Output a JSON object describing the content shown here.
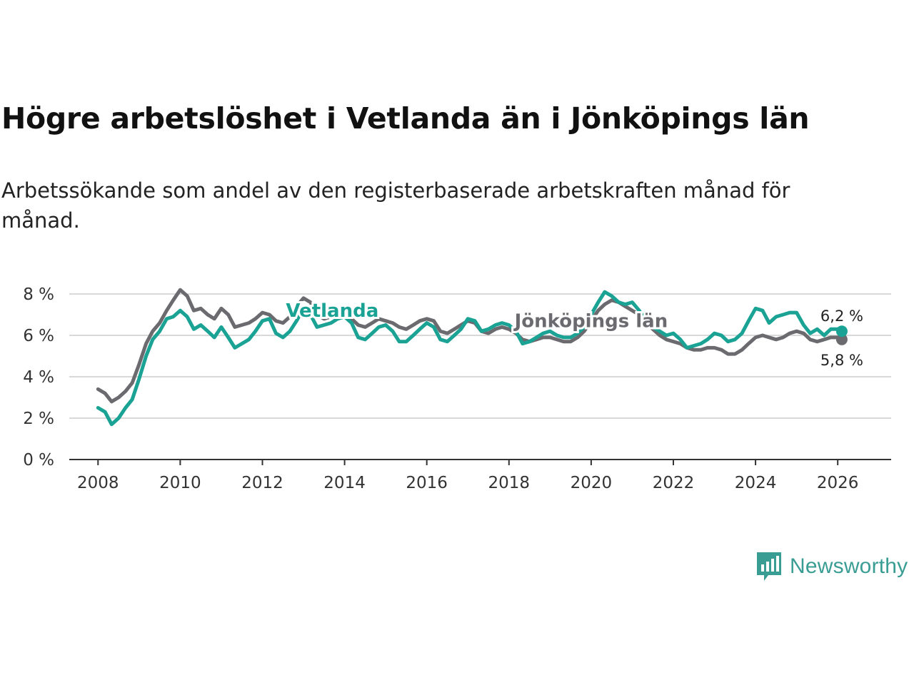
{
  "title": "Högre arbetslöshet i Vetlanda än i Jönköpings län",
  "subtitle": "Arbetssökande som andel av den registerbaserade arbetskraften månad för månad.",
  "brand": {
    "name": "Newsworthy",
    "color": "#3a9d94",
    "icon": "newsworthy-bar-chart-icon"
  },
  "chart_data": {
    "type": "line",
    "title": "Högre arbetslöshet i Vetlanda än i Jönköpings län",
    "xlabel": "",
    "ylabel": "",
    "xlim": [
      2007.3,
      2027.3
    ],
    "ylim": [
      0,
      8
    ],
    "x_ticks": [
      2008,
      2010,
      2012,
      2014,
      2016,
      2018,
      2020,
      2022,
      2024,
      2026
    ],
    "y_ticks": [
      0,
      2,
      4,
      6,
      8
    ],
    "y_tick_labels": [
      "0 %",
      "2 %",
      "4 %",
      "6 %",
      "8 %"
    ],
    "grid": true,
    "series": [
      {
        "name": "Jönköpings län",
        "color": "#6b6a6f",
        "label": "Jönköpings län",
        "end_label": "5,8 %",
        "points": [
          [
            2008.0,
            3.4
          ],
          [
            2008.17,
            3.2
          ],
          [
            2008.33,
            2.8
          ],
          [
            2008.5,
            3.0
          ],
          [
            2008.67,
            3.3
          ],
          [
            2008.83,
            3.7
          ],
          [
            2009.0,
            4.6
          ],
          [
            2009.17,
            5.6
          ],
          [
            2009.33,
            6.2
          ],
          [
            2009.5,
            6.6
          ],
          [
            2009.67,
            7.2
          ],
          [
            2009.83,
            7.7
          ],
          [
            2010.0,
            8.2
          ],
          [
            2010.17,
            7.9
          ],
          [
            2010.33,
            7.2
          ],
          [
            2010.5,
            7.3
          ],
          [
            2010.67,
            7.0
          ],
          [
            2010.83,
            6.8
          ],
          [
            2011.0,
            7.3
          ],
          [
            2011.17,
            7.0
          ],
          [
            2011.33,
            6.4
          ],
          [
            2011.5,
            6.5
          ],
          [
            2011.67,
            6.6
          ],
          [
            2011.83,
            6.8
          ],
          [
            2012.0,
            7.1
          ],
          [
            2012.17,
            7.0
          ],
          [
            2012.33,
            6.7
          ],
          [
            2012.5,
            6.6
          ],
          [
            2012.67,
            6.9
          ],
          [
            2012.83,
            7.4
          ],
          [
            2013.0,
            7.8
          ],
          [
            2013.17,
            7.6
          ],
          [
            2013.33,
            7.0
          ],
          [
            2013.5,
            6.8
          ],
          [
            2013.67,
            6.9
          ],
          [
            2013.83,
            7.0
          ],
          [
            2014.0,
            7.0
          ],
          [
            2014.17,
            6.8
          ],
          [
            2014.33,
            6.5
          ],
          [
            2014.5,
            6.4
          ],
          [
            2014.67,
            6.6
          ],
          [
            2014.83,
            6.8
          ],
          [
            2015.0,
            6.7
          ],
          [
            2015.17,
            6.6
          ],
          [
            2015.33,
            6.4
          ],
          [
            2015.5,
            6.3
          ],
          [
            2015.67,
            6.5
          ],
          [
            2015.83,
            6.7
          ],
          [
            2016.0,
            6.8
          ],
          [
            2016.17,
            6.7
          ],
          [
            2016.33,
            6.2
          ],
          [
            2016.5,
            6.1
          ],
          [
            2016.67,
            6.3
          ],
          [
            2016.83,
            6.5
          ],
          [
            2017.0,
            6.7
          ],
          [
            2017.17,
            6.6
          ],
          [
            2017.33,
            6.2
          ],
          [
            2017.5,
            6.1
          ],
          [
            2017.67,
            6.3
          ],
          [
            2017.83,
            6.4
          ],
          [
            2018.0,
            6.3
          ],
          [
            2018.17,
            6.1
          ],
          [
            2018.33,
            5.8
          ],
          [
            2018.5,
            5.7
          ],
          [
            2018.67,
            5.8
          ],
          [
            2018.83,
            5.9
          ],
          [
            2019.0,
            5.9
          ],
          [
            2019.17,
            5.8
          ],
          [
            2019.33,
            5.7
          ],
          [
            2019.5,
            5.7
          ],
          [
            2019.67,
            5.9
          ],
          [
            2019.83,
            6.2
          ],
          [
            2020.0,
            6.7
          ],
          [
            2020.17,
            7.2
          ],
          [
            2020.33,
            7.5
          ],
          [
            2020.5,
            7.7
          ],
          [
            2020.67,
            7.6
          ],
          [
            2020.83,
            7.4
          ],
          [
            2021.0,
            7.2
          ],
          [
            2021.17,
            7.0
          ],
          [
            2021.33,
            6.6
          ],
          [
            2021.5,
            6.3
          ],
          [
            2021.67,
            6.0
          ],
          [
            2021.83,
            5.8
          ],
          [
            2022.0,
            5.7
          ],
          [
            2022.17,
            5.6
          ],
          [
            2022.33,
            5.4
          ],
          [
            2022.5,
            5.3
          ],
          [
            2022.67,
            5.3
          ],
          [
            2022.83,
            5.4
          ],
          [
            2023.0,
            5.4
          ],
          [
            2023.17,
            5.3
          ],
          [
            2023.33,
            5.1
          ],
          [
            2023.5,
            5.1
          ],
          [
            2023.67,
            5.3
          ],
          [
            2023.83,
            5.6
          ],
          [
            2024.0,
            5.9
          ],
          [
            2024.17,
            6.0
          ],
          [
            2024.33,
            5.9
          ],
          [
            2024.5,
            5.8
          ],
          [
            2024.67,
            5.9
          ],
          [
            2024.83,
            6.1
          ],
          [
            2025.0,
            6.2
          ],
          [
            2025.17,
            6.1
          ],
          [
            2025.33,
            5.8
          ],
          [
            2025.5,
            5.7
          ],
          [
            2025.67,
            5.8
          ],
          [
            2025.83,
            5.9
          ],
          [
            2026.0,
            5.9
          ],
          [
            2026.1,
            5.8
          ]
        ]
      },
      {
        "name": "Vetlanda",
        "color": "#1aa394",
        "label": "Vetlanda",
        "end_label": "6,2 %",
        "points": [
          [
            2008.0,
            2.5
          ],
          [
            2008.17,
            2.3
          ],
          [
            2008.33,
            1.7
          ],
          [
            2008.5,
            2.0
          ],
          [
            2008.67,
            2.5
          ],
          [
            2008.83,
            2.9
          ],
          [
            2009.0,
            3.9
          ],
          [
            2009.17,
            5.0
          ],
          [
            2009.33,
            5.8
          ],
          [
            2009.5,
            6.2
          ],
          [
            2009.67,
            6.8
          ],
          [
            2009.83,
            6.9
          ],
          [
            2010.0,
            7.2
          ],
          [
            2010.17,
            6.9
          ],
          [
            2010.33,
            6.3
          ],
          [
            2010.5,
            6.5
          ],
          [
            2010.67,
            6.2
          ],
          [
            2010.83,
            5.9
          ],
          [
            2011.0,
            6.4
          ],
          [
            2011.17,
            5.9
          ],
          [
            2011.33,
            5.4
          ],
          [
            2011.5,
            5.6
          ],
          [
            2011.67,
            5.8
          ],
          [
            2011.83,
            6.2
          ],
          [
            2012.0,
            6.7
          ],
          [
            2012.17,
            6.8
          ],
          [
            2012.33,
            6.1
          ],
          [
            2012.5,
            5.9
          ],
          [
            2012.67,
            6.2
          ],
          [
            2012.83,
            6.7
          ],
          [
            2013.0,
            7.3
          ],
          [
            2013.17,
            7.0
          ],
          [
            2013.33,
            6.4
          ],
          [
            2013.5,
            6.5
          ],
          [
            2013.67,
            6.6
          ],
          [
            2013.83,
            6.8
          ],
          [
            2014.0,
            6.9
          ],
          [
            2014.17,
            6.6
          ],
          [
            2014.33,
            5.9
          ],
          [
            2014.5,
            5.8
          ],
          [
            2014.67,
            6.1
          ],
          [
            2014.83,
            6.4
          ],
          [
            2015.0,
            6.5
          ],
          [
            2015.17,
            6.2
          ],
          [
            2015.33,
            5.7
          ],
          [
            2015.5,
            5.7
          ],
          [
            2015.67,
            6.0
          ],
          [
            2015.83,
            6.3
          ],
          [
            2016.0,
            6.6
          ],
          [
            2016.17,
            6.4
          ],
          [
            2016.33,
            5.8
          ],
          [
            2016.5,
            5.7
          ],
          [
            2016.67,
            6.0
          ],
          [
            2016.83,
            6.3
          ],
          [
            2017.0,
            6.8
          ],
          [
            2017.17,
            6.7
          ],
          [
            2017.33,
            6.2
          ],
          [
            2017.5,
            6.3
          ],
          [
            2017.67,
            6.5
          ],
          [
            2017.83,
            6.6
          ],
          [
            2018.0,
            6.5
          ],
          [
            2018.17,
            6.2
          ],
          [
            2018.33,
            5.6
          ],
          [
            2018.5,
            5.7
          ],
          [
            2018.67,
            5.9
          ],
          [
            2018.83,
            6.1
          ],
          [
            2019.0,
            6.2
          ],
          [
            2019.17,
            6.0
          ],
          [
            2019.33,
            5.9
          ],
          [
            2019.5,
            5.9
          ],
          [
            2019.67,
            6.1
          ],
          [
            2019.83,
            6.4
          ],
          [
            2020.0,
            7.0
          ],
          [
            2020.17,
            7.6
          ],
          [
            2020.33,
            8.1
          ],
          [
            2020.5,
            7.9
          ],
          [
            2020.67,
            7.6
          ],
          [
            2020.83,
            7.5
          ],
          [
            2021.0,
            7.6
          ],
          [
            2021.17,
            7.2
          ],
          [
            2021.33,
            6.7
          ],
          [
            2021.5,
            6.4
          ],
          [
            2021.67,
            6.2
          ],
          [
            2021.83,
            6.0
          ],
          [
            2022.0,
            6.1
          ],
          [
            2022.17,
            5.8
          ],
          [
            2022.33,
            5.4
          ],
          [
            2022.5,
            5.5
          ],
          [
            2022.67,
            5.6
          ],
          [
            2022.83,
            5.8
          ],
          [
            2023.0,
            6.1
          ],
          [
            2023.17,
            6.0
          ],
          [
            2023.33,
            5.7
          ],
          [
            2023.5,
            5.8
          ],
          [
            2023.67,
            6.1
          ],
          [
            2023.83,
            6.7
          ],
          [
            2024.0,
            7.3
          ],
          [
            2024.17,
            7.2
          ],
          [
            2024.33,
            6.6
          ],
          [
            2024.5,
            6.9
          ],
          [
            2024.67,
            7.0
          ],
          [
            2024.83,
            7.1
          ],
          [
            2025.0,
            7.1
          ],
          [
            2025.17,
            6.5
          ],
          [
            2025.33,
            6.1
          ],
          [
            2025.5,
            6.3
          ],
          [
            2025.67,
            6.0
          ],
          [
            2025.83,
            6.3
          ],
          [
            2026.0,
            6.3
          ],
          [
            2026.1,
            6.2
          ]
        ]
      }
    ]
  }
}
